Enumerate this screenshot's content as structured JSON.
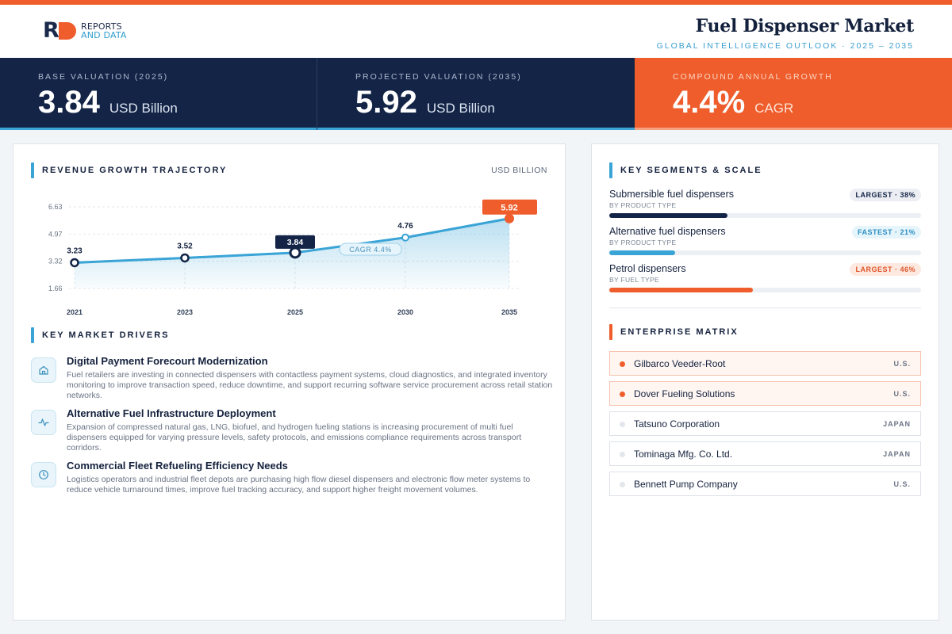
{
  "brand": {
    "line1": "REPORTS",
    "line2": "AND DATA",
    "mark": "R"
  },
  "header": {
    "title": "Fuel Dispenser Market",
    "subtitle": "GLOBAL INTELLIGENCE OUTLOOK  ·  2025 – 2035"
  },
  "kpis": [
    {
      "label": "BASE VALUATION (2025)",
      "value": "3.84",
      "unit": "USD Billion"
    },
    {
      "label": "PROJECTED VALUATION (2035)",
      "value": "5.92",
      "unit": "USD Billion"
    },
    {
      "label": "COMPOUND ANNUAL GROWTH",
      "value": "4.4%",
      "unit": "CAGR"
    }
  ],
  "revenue": {
    "heading": "REVENUE GROWTH TRAJECTORY",
    "unit_label": "USD BILLION",
    "cagr_badge": "CAGR 4.4%"
  },
  "chart_data": {
    "type": "area",
    "title": "",
    "x": [
      "2021",
      "2023",
      "2025",
      "2030",
      "2035"
    ],
    "series": [
      {
        "values": [
          3.23,
          3.52,
          3.84,
          4.76,
          5.92
        ]
      }
    ],
    "y_ticks": [
      "1.66",
      "3.32",
      "4.97",
      "6.63"
    ],
    "ylim": [
      1.66,
      6.63
    ],
    "data_labels": [
      "3.23",
      "3.52",
      "3.84",
      "4.76",
      "5.92"
    ],
    "highlight": {
      "base_index": 2,
      "projected_index": 4
    },
    "grid": true,
    "colors": {
      "line": "#3aa4d6",
      "base": "#132447",
      "projected": "#ee5d2b"
    }
  },
  "drivers": {
    "heading": "KEY MARKET DRIVERS",
    "items": [
      {
        "icon": "home-icon",
        "title": "Digital Payment Forecourt Modernization",
        "desc": "Fuel retailers are investing in connected dispensers with contactless payment systems, cloud diagnostics, and integrated inventory monitoring to improve transaction speed, reduce downtime, and support recurring software service procurement across retail station networks."
      },
      {
        "icon": "activity-icon",
        "title": "Alternative Fuel Infrastructure Deployment",
        "desc": "Expansion of compressed natural gas, LNG, biofuel, and hydrogen fueling stations is increasing procurement of multi fuel dispensers equipped for varying pressure levels, safety protocols, and emissions compliance requirements across transport corridors."
      },
      {
        "icon": "clock-icon",
        "title": "Commercial Fleet Refueling Efficiency Needs",
        "desc": "Logistics operators and industrial fleet depots are purchasing high flow diesel dispensers and electronic flow meter systems to reduce vehicle turnaround times, improve fuel tracking accuracy, and support higher freight movement volumes."
      }
    ]
  },
  "segments": {
    "heading": "KEY SEGMENTS & SCALE",
    "items": [
      {
        "name": "Submersible fuel dispensers",
        "sub": "BY PRODUCT TYPE",
        "badge": "LARGEST · 38%",
        "share": 38,
        "color": "#132447",
        "badge_bg": "#eceef3",
        "badge_fg": "#132447"
      },
      {
        "name": "Alternative fuel dispensers",
        "sub": "BY PRODUCT TYPE",
        "badge": "FASTEST · 21%",
        "share": 21,
        "color": "#3aa4d6",
        "badge_bg": "#e6f4fb",
        "badge_fg": "#2b8fc2"
      },
      {
        "name": "Petrol dispensers",
        "sub": "BY FUEL TYPE",
        "badge": "LARGEST · 46%",
        "share": 46,
        "color": "#ee5d2b",
        "badge_bg": "#fde9e0",
        "badge_fg": "#e0552a"
      }
    ]
  },
  "enterprise": {
    "heading": "ENTERPRISE MATRIX",
    "items": [
      {
        "name": "Gilbarco Veeder-Root",
        "country": "U.S.",
        "highlight": true
      },
      {
        "name": "Dover Fueling Solutions",
        "country": "U.S.",
        "highlight": true
      },
      {
        "name": "Tatsuno Corporation",
        "country": "JAPAN",
        "highlight": false
      },
      {
        "name": "Tominaga Mfg. Co. Ltd.",
        "country": "JAPAN",
        "highlight": false
      },
      {
        "name": "Bennett Pump Company",
        "country": "U.S.",
        "highlight": false
      }
    ]
  }
}
